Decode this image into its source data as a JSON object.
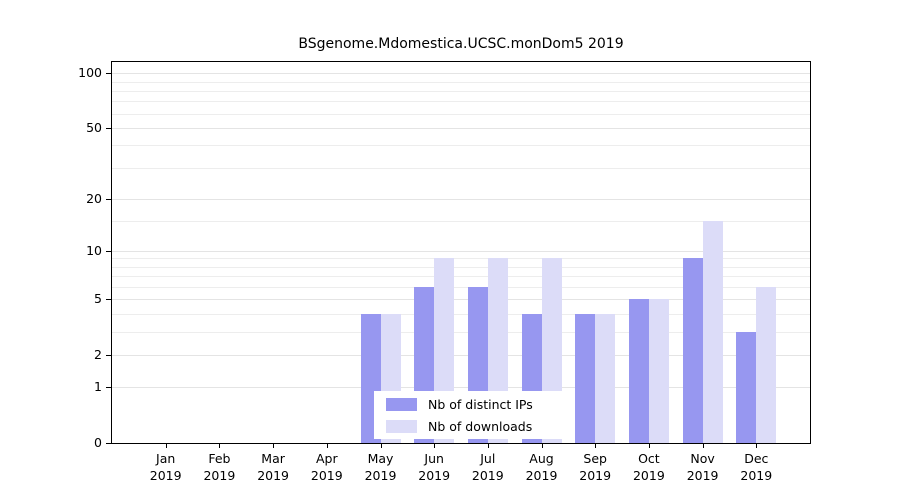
{
  "chart_data": {
    "type": "bar",
    "title": "BSgenome.Mdomestica.UCSC.monDom5 2019",
    "categories": [
      "Jan 2019",
      "Feb 2019",
      "Mar 2019",
      "Apr 2019",
      "May 2019",
      "Jun 2019",
      "Jul 2019",
      "Aug 2019",
      "Sep 2019",
      "Oct 2019",
      "Nov 2019",
      "Dec 2019"
    ],
    "series": [
      {
        "name": "Nb of distinct IPs",
        "color": "#9797F0",
        "values": [
          0,
          0,
          0,
          0,
          4,
          6,
          6,
          4,
          4,
          5,
          9,
          3
        ]
      },
      {
        "name": "Nb of downloads",
        "color": "#DCDCF8",
        "values": [
          0,
          0,
          0,
          0,
          4,
          9,
          9,
          9,
          4,
          5,
          15,
          6
        ]
      }
    ],
    "yticks": [
      0,
      1,
      2,
      5,
      10,
      20,
      50,
      100
    ],
    "minor_gridlines": [
      3,
      4,
      6,
      7,
      8,
      9,
      15,
      30,
      40,
      60,
      70,
      80,
      90
    ],
    "ylim": [
      0,
      100
    ],
    "yscale": "log1p",
    "grid": true,
    "legend_position": "bottom-center",
    "background_color": "#ffffff",
    "axis_color": "#000000",
    "gridline_color": "#e7e7e7"
  }
}
